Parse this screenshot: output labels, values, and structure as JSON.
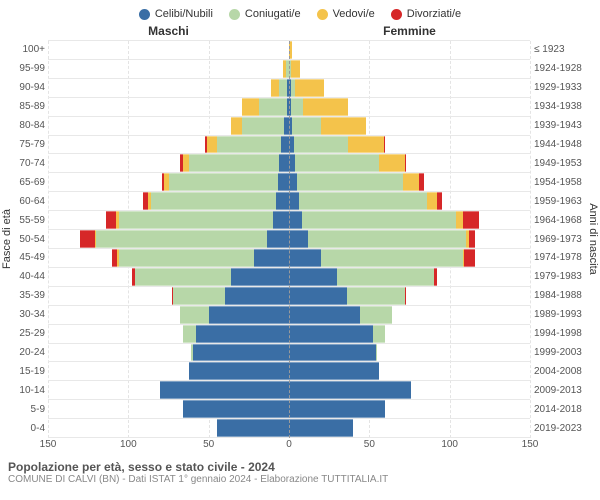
{
  "legend": [
    {
      "label": "Celibi/Nubili",
      "color": "#3a6ea5"
    },
    {
      "label": "Coniugati/e",
      "color": "#b7d7a8"
    },
    {
      "label": "Vedovi/e",
      "color": "#f4c34b"
    },
    {
      "label": "Divorziati/e",
      "color": "#d62728"
    }
  ],
  "headers": {
    "male": "Maschi",
    "female": "Femmine"
  },
  "yaxis_left_label": "Fasce di età",
  "yaxis_right_label": "Anni di nascita",
  "xaxis": {
    "max": 150,
    "ticks": [
      150,
      100,
      50,
      0,
      50,
      100,
      150
    ]
  },
  "age_groups": [
    "100+",
    "95-99",
    "90-94",
    "85-89",
    "80-84",
    "75-79",
    "70-74",
    "65-69",
    "60-64",
    "55-59",
    "50-54",
    "45-49",
    "40-44",
    "35-39",
    "30-34",
    "25-29",
    "20-24",
    "15-19",
    "10-14",
    "5-9",
    "0-4"
  ],
  "birth_years": [
    "≤ 1923",
    "1924-1928",
    "1929-1933",
    "1934-1938",
    "1939-1943",
    "1944-1948",
    "1949-1953",
    "1954-1958",
    "1959-1963",
    "1964-1968",
    "1969-1973",
    "1974-1978",
    "1979-1983",
    "1984-1988",
    "1989-1993",
    "1994-1998",
    "1999-2003",
    "2004-2008",
    "2009-2013",
    "2014-2018",
    "2019-2023"
  ],
  "colors": {
    "single": "#3a6ea5",
    "married": "#b7d7a8",
    "widowed": "#f4c34b",
    "divorced": "#d62728",
    "grid": "#e4e4e4",
    "centerline": "#9a9a9a",
    "row_border": "#e8e8e8",
    "background": "#ffffff"
  },
  "data": {
    "male": [
      {
        "single": 0,
        "married": 0,
        "widowed": 0,
        "divorced": 0
      },
      {
        "single": 0,
        "married": 2,
        "widowed": 2,
        "divorced": 0
      },
      {
        "single": 1,
        "married": 5,
        "widowed": 5,
        "divorced": 0
      },
      {
        "single": 1,
        "married": 18,
        "widowed": 10,
        "divorced": 0
      },
      {
        "single": 3,
        "married": 26,
        "widowed": 7,
        "divorced": 0
      },
      {
        "single": 5,
        "married": 40,
        "widowed": 6,
        "divorced": 1
      },
      {
        "single": 6,
        "married": 56,
        "widowed": 4,
        "divorced": 2
      },
      {
        "single": 7,
        "married": 68,
        "widowed": 3,
        "divorced": 1
      },
      {
        "single": 8,
        "married": 78,
        "widowed": 2,
        "divorced": 3
      },
      {
        "single": 10,
        "married": 96,
        "widowed": 2,
        "divorced": 6
      },
      {
        "single": 14,
        "married": 106,
        "widowed": 1,
        "divorced": 9
      },
      {
        "single": 22,
        "married": 84,
        "widowed": 1,
        "divorced": 3
      },
      {
        "single": 36,
        "married": 60,
        "widowed": 0,
        "divorced": 2
      },
      {
        "single": 40,
        "married": 32,
        "widowed": 0,
        "divorced": 1
      },
      {
        "single": 50,
        "married": 18,
        "widowed": 0,
        "divorced": 0
      },
      {
        "single": 58,
        "married": 8,
        "widowed": 0,
        "divorced": 0
      },
      {
        "single": 60,
        "married": 1,
        "widowed": 0,
        "divorced": 0
      },
      {
        "single": 62,
        "married": 0,
        "widowed": 0,
        "divorced": 0
      },
      {
        "single": 80,
        "married": 0,
        "widowed": 0,
        "divorced": 0
      },
      {
        "single": 66,
        "married": 0,
        "widowed": 0,
        "divorced": 0
      },
      {
        "single": 45,
        "married": 0,
        "widowed": 0,
        "divorced": 0
      }
    ],
    "female": [
      {
        "single": 0,
        "married": 0,
        "widowed": 2,
        "divorced": 0
      },
      {
        "single": 0,
        "married": 1,
        "widowed": 6,
        "divorced": 0
      },
      {
        "single": 1,
        "married": 3,
        "widowed": 18,
        "divorced": 0
      },
      {
        "single": 1,
        "married": 8,
        "widowed": 28,
        "divorced": 0
      },
      {
        "single": 2,
        "married": 18,
        "widowed": 28,
        "divorced": 0
      },
      {
        "single": 3,
        "married": 34,
        "widowed": 22,
        "divorced": 1
      },
      {
        "single": 4,
        "married": 52,
        "widowed": 16,
        "divorced": 1
      },
      {
        "single": 5,
        "married": 66,
        "widowed": 10,
        "divorced": 3
      },
      {
        "single": 6,
        "married": 80,
        "widowed": 6,
        "divorced": 3
      },
      {
        "single": 8,
        "married": 96,
        "widowed": 4,
        "divorced": 10
      },
      {
        "single": 12,
        "married": 98,
        "widowed": 2,
        "divorced": 4
      },
      {
        "single": 20,
        "married": 88,
        "widowed": 1,
        "divorced": 7
      },
      {
        "single": 30,
        "married": 60,
        "widowed": 0,
        "divorced": 2
      },
      {
        "single": 36,
        "married": 36,
        "widowed": 0,
        "divorced": 1
      },
      {
        "single": 44,
        "married": 20,
        "widowed": 0,
        "divorced": 0
      },
      {
        "single": 52,
        "married": 8,
        "widowed": 0,
        "divorced": 0
      },
      {
        "single": 54,
        "married": 1,
        "widowed": 0,
        "divorced": 0
      },
      {
        "single": 56,
        "married": 0,
        "widowed": 0,
        "divorced": 0
      },
      {
        "single": 76,
        "married": 0,
        "widowed": 0,
        "divorced": 0
      },
      {
        "single": 60,
        "married": 0,
        "widowed": 0,
        "divorced": 0
      },
      {
        "single": 40,
        "married": 0,
        "widowed": 0,
        "divorced": 0
      }
    ]
  },
  "footer": {
    "title": "Popolazione per età, sesso e stato civile - 2024",
    "subtitle": "COMUNE DI CALVI (BN) - Dati ISTAT 1° gennaio 2024 - Elaborazione TUTTITALIA.IT"
  }
}
